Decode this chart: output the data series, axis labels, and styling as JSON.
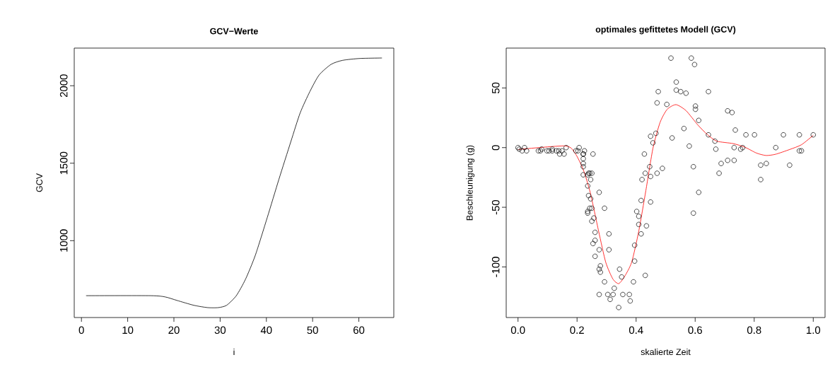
{
  "chart_data": [
    {
      "type": "line",
      "title": "GCV−Werte",
      "xlabel": "i",
      "ylabel": "GCV",
      "xlim": [
        -1.56,
        67.56
      ],
      "ylim": [
        504,
        2243
      ],
      "xticks": [
        0,
        10,
        20,
        30,
        40,
        50,
        60
      ],
      "yticks": [
        1000,
        1500,
        2000
      ],
      "grid": false,
      "series": [
        {
          "color": "#000000",
          "x": [
            1,
            15,
            18.1,
            20.7,
            24.3,
            27.3,
            29.6,
            31.4,
            33.5,
            35.5,
            37.6,
            40.2,
            42.7,
            45.3,
            47.3,
            49.4,
            51.4,
            54.0,
            56.5,
            60.2,
            65
          ],
          "values": [
            645,
            645,
            637,
            614,
            583,
            568,
            568,
            583,
            645,
            752,
            905,
            1150,
            1395,
            1640,
            1824,
            1962,
            2069,
            2138,
            2164,
            2176,
            2179
          ]
        }
      ]
    },
    {
      "type": "scatter",
      "title": "optimales gefittetes Modell (GCV)",
      "xlabel": "skalierte Zeit",
      "ylabel": "Beschleunigung (g)",
      "xlim": [
        -0.04,
        1.04
      ],
      "ylim": [
        -142.4,
        83.4
      ],
      "xticks": [
        {
          "value": 0,
          "label": "0.0"
        },
        {
          "value": 0.2,
          "label": "0.2"
        },
        {
          "value": 0.4,
          "label": "0.4"
        },
        {
          "value": 0.6,
          "label": "0.6"
        },
        {
          "value": 0.8,
          "label": "0.8"
        },
        {
          "value": 1,
          "label": "1.0"
        }
      ],
      "yticks": [
        -100,
        -50,
        0,
        50
      ],
      "grid": false,
      "series": [
        {
          "marker": "circle",
          "color": "#000000",
          "x": [
            0,
            0.004,
            0.014,
            0.022,
            0.029,
            0.069,
            0.076,
            0.08,
            0.098,
            0.105,
            0.116,
            0.116,
            0.13,
            0.138,
            0.141,
            0.149,
            0.156,
            0.163,
            0.196,
            0.203,
            0.207,
            0.221,
            0.221,
            0.221,
            0.221,
            0.221,
            0.221,
            0.225,
            0.236,
            0.236,
            0.236,
            0.236,
            0.239,
            0.239,
            0.243,
            0.243,
            0.246,
            0.246,
            0.25,
            0.25,
            0.25,
            0.254,
            0.254,
            0.257,
            0.261,
            0.261,
            0.261,
            0.275,
            0.275,
            0.275,
            0.275,
            0.279,
            0.279,
            0.293,
            0.293,
            0.304,
            0.308,
            0.308,
            0.312,
            0.322,
            0.326,
            0.341,
            0.344,
            0.351,
            0.355,
            0.377,
            0.38,
            0.391,
            0.395,
            0.395,
            0.402,
            0.409,
            0.409,
            0.417,
            0.417,
            0.42,
            0.428,
            0.431,
            0.431,
            0.435,
            0.446,
            0.449,
            0.449,
            0.449,
            0.457,
            0.467,
            0.471,
            0.471,
            0.475,
            0.489,
            0.504,
            0.518,
            0.522,
            0.536,
            0.536,
            0.551,
            0.562,
            0.569,
            0.58,
            0.587,
            0.594,
            0.594,
            0.598,
            0.601,
            0.601,
            0.612,
            0.612,
            0.645,
            0.645,
            0.667,
            0.67,
            0.681,
            0.688,
            0.71,
            0.71,
            0.725,
            0.732,
            0.732,
            0.736,
            0.754,
            0.761,
            0.772,
            0.801,
            0.822,
            0.822,
            0.841,
            0.873,
            0.899,
            0.92,
            0.953,
            0.953,
            0.96,
            1.0
          ],
          "values": [
            0.0,
            -1.3,
            -2.7,
            0.0,
            -2.7,
            -2.7,
            -2.7,
            -1.3,
            -2.7,
            -2.7,
            -1.3,
            -2.7,
            -2.7,
            -2.7,
            -5.4,
            -2.7,
            -5.4,
            0.0,
            -2.7,
            -2.7,
            0.0,
            -13.3,
            -5.4,
            -5.4,
            -9.3,
            -16.0,
            -22.8,
            -2.7,
            -22.8,
            -32.1,
            -53.5,
            -54.9,
            -40.2,
            -21.5,
            -21.5,
            -50.8,
            -42.9,
            -26.8,
            -21.5,
            -50.8,
            -61.7,
            -5.4,
            -80.4,
            -59.0,
            -71.0,
            -91.1,
            -77.7,
            -37.5,
            -85.6,
            -123.1,
            -101.9,
            -99.1,
            -104.4,
            -112.5,
            -50.8,
            -123.1,
            -85.6,
            -72.3,
            -127.2,
            -123.1,
            -117.9,
            -134.0,
            -101.9,
            -108.4,
            -123.1,
            -123.1,
            -128.5,
            -112.5,
            -95.1,
            -81.8,
            -53.5,
            -64.4,
            -57.6,
            -72.3,
            -44.3,
            -26.8,
            -5.4,
            -107.1,
            -21.5,
            -65.6,
            -16.0,
            -45.6,
            -24.2,
            9.5,
            4.0,
            12.0,
            -21.5,
            37.5,
            46.9,
            -17.4,
            36.2,
            75.0,
            8.1,
            54.9,
            48.2,
            46.9,
            16.0,
            45.6,
            1.3,
            75.0,
            -16.0,
            -54.9,
            69.6,
            34.8,
            32.1,
            -37.5,
            22.8,
            46.9,
            10.7,
            5.4,
            -1.3,
            -21.5,
            -13.3,
            30.8,
            -10.7,
            29.4,
            0.0,
            -10.7,
            14.7,
            -1.3,
            0.0,
            10.7,
            10.7,
            -26.8,
            -14.7,
            -13.3,
            0.0,
            10.7,
            -14.7,
            -2.7,
            10.7,
            -2.7,
            10.7
          ]
        },
        {
          "type": "line",
          "color": "#ff0000",
          "x": [
            0,
            0.16,
            0.193,
            0.221,
            0.245,
            0.273,
            0.297,
            0.321,
            0.341,
            0.361,
            0.385,
            0.409,
            0.433,
            0.457,
            0.481,
            0.505,
            0.535,
            0.569,
            0.609,
            0.641,
            0.673,
            0.728,
            0.768,
            0.808,
            0.84,
            0.872,
            0.92,
            0.96,
            1.0
          ],
          "values": [
            -1.6,
            1.4,
            -4.6,
            -18.5,
            -38,
            -70,
            -96,
            -110,
            -114,
            -108,
            -96,
            -70,
            -36,
            -0.6,
            21,
            32,
            36,
            31,
            19,
            11,
            5.4,
            3.4,
            0.4,
            -4.6,
            -6.6,
            -5.6,
            -1.6,
            2.4,
            10.3
          ]
        }
      ]
    }
  ]
}
